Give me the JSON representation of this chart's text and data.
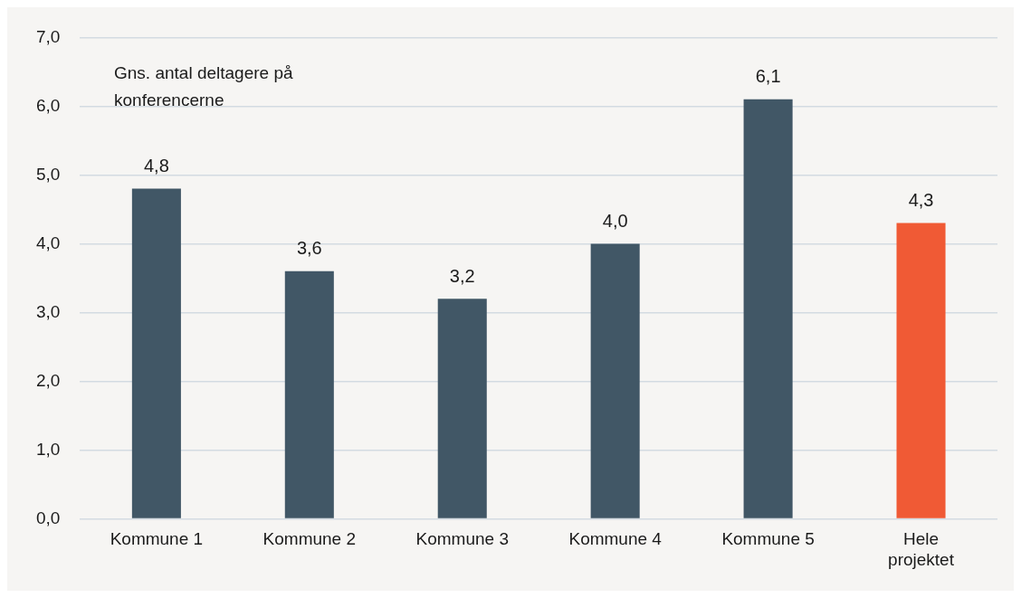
{
  "chart_data": {
    "type": "bar",
    "ylabel": "Gns. antal deltagere på konferencerne",
    "categories": [
      "Kommune 1",
      "Kommune 2",
      "Kommune 3",
      "Kommune 4",
      "Kommune 5",
      "Hele projektet"
    ],
    "values": [
      4.8,
      3.6,
      3.2,
      4.0,
      6.1,
      4.3
    ],
    "colors": [
      "#415766",
      "#415766",
      "#415766",
      "#415766",
      "#415766",
      "#f05a35"
    ],
    "value_labels": [
      "4,8",
      "3,6",
      "3,2",
      "4,0",
      "6,1",
      "4,3"
    ],
    "ylim": [
      0,
      7
    ],
    "yticks": [
      {
        "value": 0,
        "label": "0,0"
      },
      {
        "value": 1,
        "label": "1,0"
      },
      {
        "value": 2,
        "label": "2,0"
      },
      {
        "value": 3,
        "label": "3,0"
      },
      {
        "value": 4,
        "label": "4,0"
      },
      {
        "value": 5,
        "label": "5,0"
      },
      {
        "value": 6,
        "label": "6,0"
      },
      {
        "value": 7,
        "label": "7,0"
      }
    ],
    "grid": "y",
    "legend": false
  }
}
